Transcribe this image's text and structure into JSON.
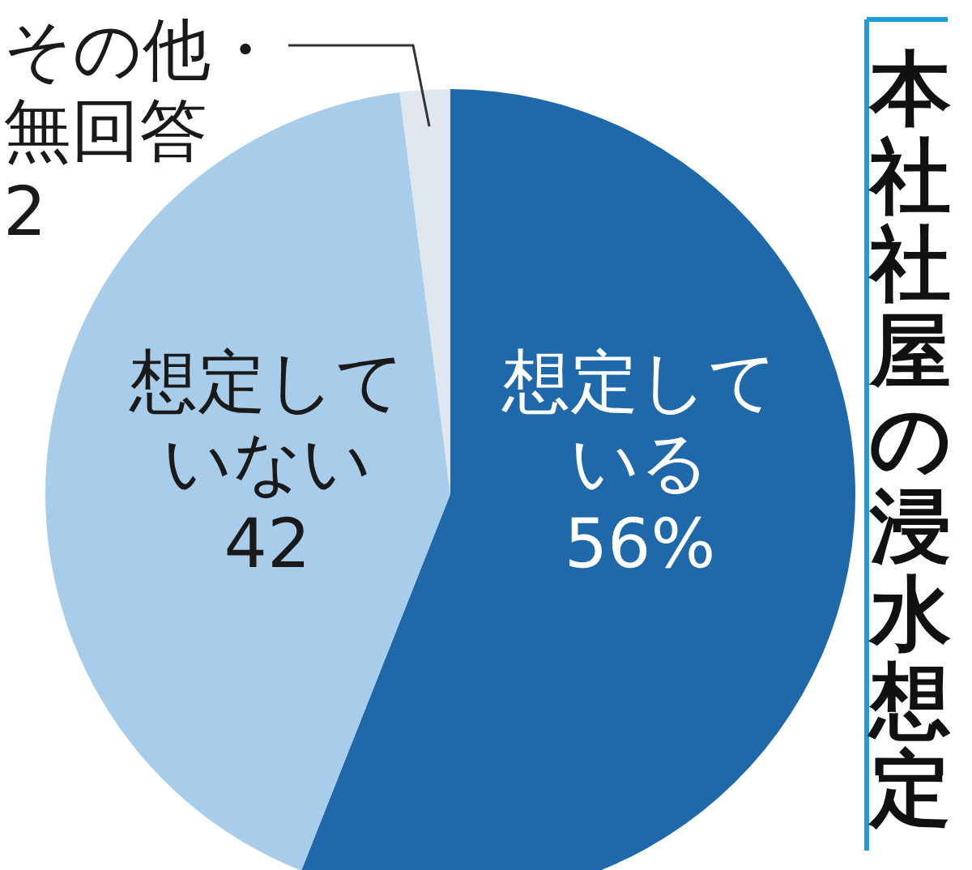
{
  "chart_data": {
    "type": "pie",
    "title": "本社社屋の浸水想定",
    "categories": [
      "想定している",
      "想定していない",
      "その他・無回答"
    ],
    "values": [
      56,
      42,
      2
    ],
    "colors": [
      "#1f69ab",
      "#a8cdeb",
      "#dfe6ee"
    ],
    "value_labels": [
      "56%",
      "42",
      "2"
    ]
  }
}
